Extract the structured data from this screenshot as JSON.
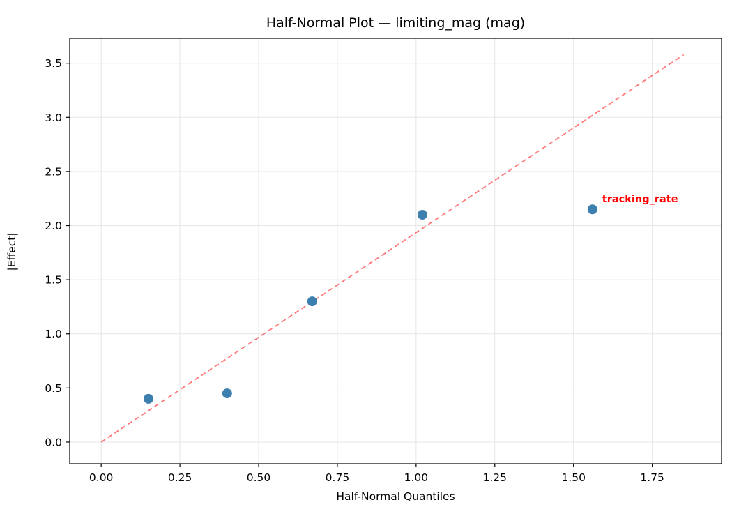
{
  "chart_data": {
    "type": "scatter",
    "title": "Half-Normal Plot — limiting_mag (mag)",
    "xlabel": "Half-Normal Quantiles",
    "ylabel": "|Effect|",
    "xlim": [
      -0.1,
      1.97
    ],
    "ylim": [
      -0.2,
      3.73
    ],
    "x_ticks": [
      0.0,
      0.25,
      0.5,
      0.75,
      1.0,
      1.25,
      1.5,
      1.75
    ],
    "x_tick_labels": [
      "0.00",
      "0.25",
      "0.50",
      "0.75",
      "1.00",
      "1.25",
      "1.50",
      "1.75"
    ],
    "y_ticks": [
      0.0,
      0.5,
      1.0,
      1.5,
      2.0,
      2.5,
      3.0,
      3.5
    ],
    "y_tick_labels": [
      "0.0",
      "0.5",
      "1.0",
      "1.5",
      "2.0",
      "2.5",
      "3.0",
      "3.5"
    ],
    "grid": true,
    "grid_color": "#e6e6e6",
    "spine_color": "#000000",
    "points": [
      {
        "x": 0.15,
        "y": 0.4
      },
      {
        "x": 0.4,
        "y": 0.45
      },
      {
        "x": 0.67,
        "y": 1.3
      },
      {
        "x": 1.02,
        "y": 2.1
      },
      {
        "x": 1.56,
        "y": 2.15,
        "label": "tracking_rate"
      }
    ],
    "point_color": "#3d7fae",
    "point_radius": 7,
    "ref_line": {
      "x": [
        0.0,
        1.85
      ],
      "y": [
        0.0,
        3.58
      ],
      "color": "#ff4b4b",
      "opacity": 0.75,
      "dashed": true
    },
    "annotation_color": "#ff0000"
  }
}
